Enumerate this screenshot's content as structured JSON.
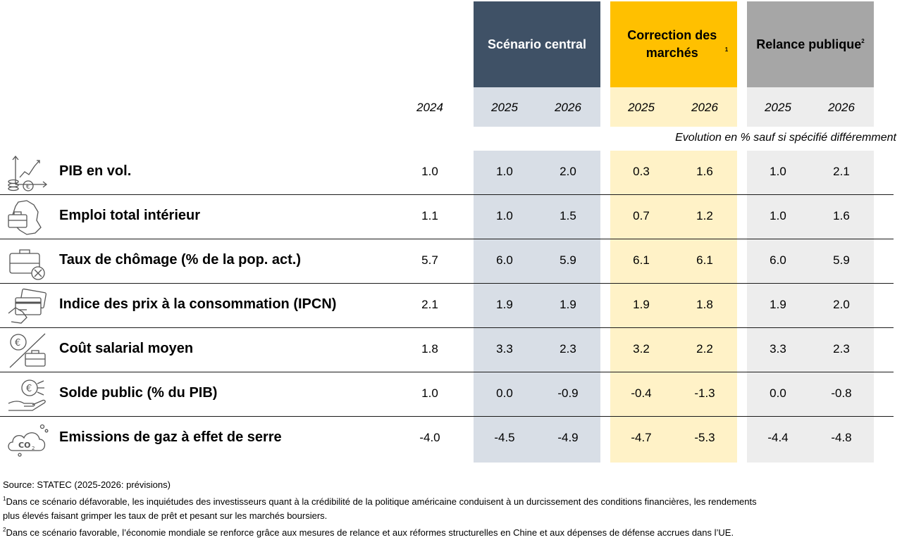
{
  "headers": {
    "central": "Scénario central",
    "correction": "Correction des marchés",
    "correction_sup": "1",
    "relance": "Relance publique",
    "relance_sup": "2"
  },
  "years": {
    "y2024": "2024",
    "central": [
      "2025",
      "2026"
    ],
    "correction": [
      "2025",
      "2026"
    ],
    "relance": [
      "2025",
      "2026"
    ]
  },
  "note": "Evolution en % sauf si spécifié différemment",
  "rows": [
    {
      "label": "PIB en vol.",
      "icon": "growth-coins-icon",
      "v2024": "1.0",
      "central": [
        "1.0",
        "2.0"
      ],
      "correction": [
        "0.3",
        "1.6"
      ],
      "relance": [
        "1.0",
        "2.1"
      ]
    },
    {
      "label": "Emploi total intérieur",
      "icon": "briefcase-map-icon",
      "v2024": "1.1",
      "central": [
        "1.0",
        "1.5"
      ],
      "correction": [
        "0.7",
        "1.2"
      ],
      "relance": [
        "1.0",
        "1.6"
      ]
    },
    {
      "label": "Taux de chômage (% de la pop. act.)",
      "icon": "briefcase-cross-icon",
      "v2024": "5.7",
      "central": [
        "6.0",
        "5.9"
      ],
      "correction": [
        "6.1",
        "6.1"
      ],
      "relance": [
        "6.0",
        "5.9"
      ]
    },
    {
      "label": "Indice des prix à la consommation (IPCN)",
      "icon": "credit-card-icon",
      "v2024": "2.1",
      "central": [
        "1.9",
        "1.9"
      ],
      "correction": [
        "1.9",
        "1.8"
      ],
      "relance": [
        "1.9",
        "2.0"
      ]
    },
    {
      "label": "Coût salarial moyen",
      "icon": "euro-briefcase-icon",
      "v2024": "1.8",
      "central": [
        "3.3",
        "2.3"
      ],
      "correction": [
        "3.2",
        "2.2"
      ],
      "relance": [
        "3.3",
        "2.3"
      ]
    },
    {
      "label": "Solde public (% du PIB)",
      "icon": "hand-euro-icon",
      "v2024": "1.0",
      "central": [
        "0.0",
        "-0.9"
      ],
      "correction": [
        "-0.4",
        "-1.3"
      ],
      "relance": [
        "0.0",
        "-0.8"
      ]
    },
    {
      "label": "Emissions de gaz à effet de serre",
      "icon": "co2-cloud-icon",
      "v2024": "-4.0",
      "central": [
        "-4.5",
        "-4.9"
      ],
      "correction": [
        "-4.7",
        "-5.3"
      ],
      "relance": [
        "-4.4",
        "-4.8"
      ]
    }
  ],
  "footnotes": {
    "source": "Source: STATEC (2025-2026: prévisions)",
    "n1_mark": "1",
    "n1_line1": "Dans ce scénario défavorable, les inquiétudes des investisseurs quant à la crédibilité de la politique américaine conduisent à un durcissement des conditions financières, les rendements",
    "n1_line2": "plus élevés faisant grimper les taux de prêt et pesant sur les marchés boursiers.",
    "n2_mark": "2",
    "n2_line1": "Dans ce scénario favorable, l’économie mondiale se renforce grâce aux mesures de relance et aux réformes structurelles en Chine et aux dépenses de défense accrues dans l’UE."
  }
}
